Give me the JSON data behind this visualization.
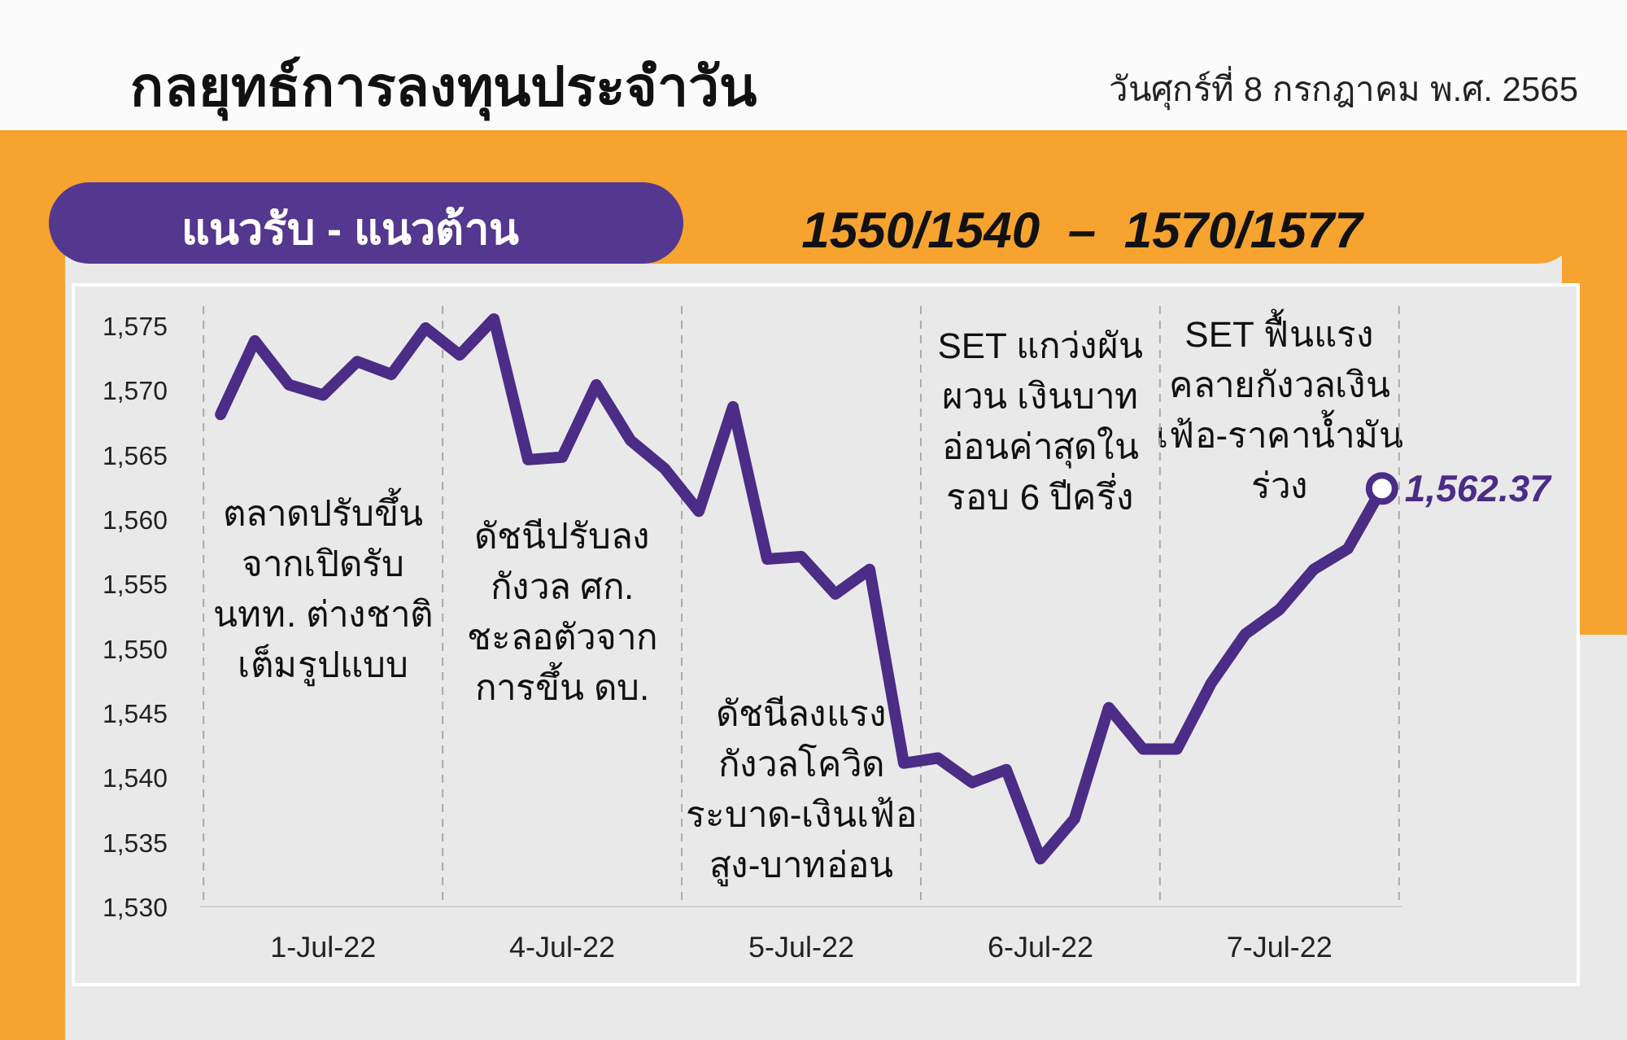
{
  "chart_data": {
    "type": "line",
    "title": "กลยุทธ์การลงทุนประจำวัน",
    "subtitle": "วันศุกร์ที่ 8 กรกฎาคม พ.ศ. 2565",
    "annotations": [
      "แนวรับ - แนวต้าน",
      "1550/1540  –  1570/1577",
      "ตลาดปรับขึ้น\nจากเปิดรับ\nนทท. ต่างชาติ\nเต็มรูปแบบ",
      "ดัชนีปรับลง\nกังวล ศก.\nชะลอตัวจาก\nการขึ้น ดบ.",
      "ดัชนีลงแรง\nกังวลโควิด\nระบาด-เงินเฟ้อ\nสูง-บาทอ่อน",
      "SET แกว่งผัน\nผวน เงินบาท\nอ่อนค่าสุดใน\nรอบ 6 ปีครึ่ง",
      "SET ฟื้นแรง\nคลายกังวลเงิน\nเฟ้อ-ราคาน้ำมัน\nร่วง"
    ],
    "categories": [
      null,
      null,
      null,
      "1-Jul-22",
      null,
      null,
      null,
      null,
      null,
      null,
      "4-Jul-22",
      null,
      null,
      null,
      null,
      null,
      null,
      "5-Jul-22",
      null,
      null,
      null,
      null,
      null,
      null,
      "6-Jul-22",
      null,
      null,
      null,
      null,
      null,
      null,
      "7-Jul-22",
      null,
      null,
      null
    ],
    "series": [
      {
        "color": "#4b2c86",
        "values": [
          1568.1,
          1573.8,
          1570.4,
          1569.6,
          1572.2,
          1571.2,
          1574.8,
          1572.7,
          1575.5,
          1564.6,
          1564.8,
          1570.4,
          1566.1,
          1563.9,
          1560.6,
          1568.7,
          1556.9,
          1557.1,
          1554.2,
          1556.1,
          1541.1,
          1541.5,
          1539.6,
          1540.6,
          1533.7,
          1536.8,
          1545.4,
          1542.2,
          1542.2,
          1547.3,
          1551.1,
          1553.0,
          1556.1,
          1557.7,
          1562.37
        ],
        "value_labels": [
          null,
          null,
          null,
          null,
          null,
          null,
          null,
          null,
          null,
          null,
          null,
          null,
          null,
          null,
          null,
          null,
          null,
          null,
          null,
          null,
          null,
          null,
          null,
          null,
          null,
          null,
          null,
          null,
          null,
          null,
          null,
          null,
          null,
          null,
          "1,562.37"
        ]
      }
    ],
    "ylim": [
      1530,
      1576.5
    ],
    "yticks": [
      {
        "value": 1530,
        "label": "1,530"
      },
      {
        "value": 1535,
        "label": "1,535"
      },
      {
        "value": 1540,
        "label": "1,540"
      },
      {
        "value": 1545,
        "label": "1,545"
      },
      {
        "value": 1550,
        "label": "1,550"
      },
      {
        "value": 1555,
        "label": "1,555"
      },
      {
        "value": 1560,
        "label": "1,560"
      },
      {
        "value": 1565,
        "label": "1,565"
      },
      {
        "value": 1570,
        "label": "1,570"
      },
      {
        "value": 1575,
        "label": "1,575"
      }
    ],
    "grid": false,
    "marker": "none",
    "line_style": "solid"
  }
}
